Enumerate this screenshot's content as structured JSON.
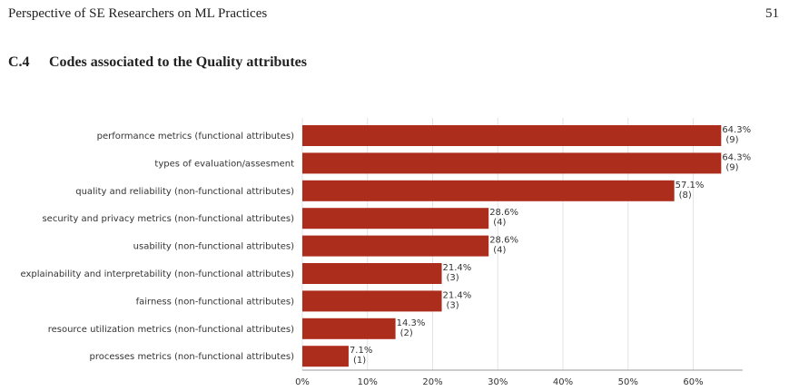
{
  "header": {
    "title": "Perspective of SE Researchers on ML Practices",
    "page_number": "51"
  },
  "section": {
    "number": "C.4",
    "title": "Codes associated to the Quality attributes"
  },
  "chart_data": {
    "type": "hbar",
    "categories": [
      "performance metrics (functional attributes)",
      "types of evaluation/assesment",
      "quality and reliability (non-functional attributes)",
      "security and privacy metrics (non-functional attributes)",
      "usability (non-functional attributes)",
      "explainability and interpretability (non-functional attributes)",
      "fairness (non-functional attributes)",
      "resource utilization metrics (non-functional attributes)",
      "processes metrics (non-functional attributes)"
    ],
    "values": [
      64.3,
      64.3,
      57.1,
      28.6,
      28.6,
      21.4,
      21.4,
      14.3,
      7.1
    ],
    "value_labels": [
      "64.3%",
      "64.3%",
      "57.1%",
      "28.6%",
      "28.6%",
      "21.4%",
      "21.4%",
      "14.3%",
      "7.1%"
    ],
    "count_labels": [
      "(9)",
      "(9)",
      "(8)",
      "(4)",
      "(4)",
      "(3)",
      "(3)",
      "(2)",
      "(1)"
    ],
    "color": "#ad2d1c",
    "xlim": [
      0,
      67.6
    ],
    "xticks": [
      {
        "value": 0,
        "label": "0%"
      },
      {
        "value": 10,
        "label": "10%"
      },
      {
        "value": 20,
        "label": "20%"
      },
      {
        "value": 30,
        "label": "30%"
      },
      {
        "value": 40,
        "label": "40%"
      },
      {
        "value": 50,
        "label": "50%"
      },
      {
        "value": 60,
        "label": "60%"
      }
    ],
    "grid": true
  }
}
